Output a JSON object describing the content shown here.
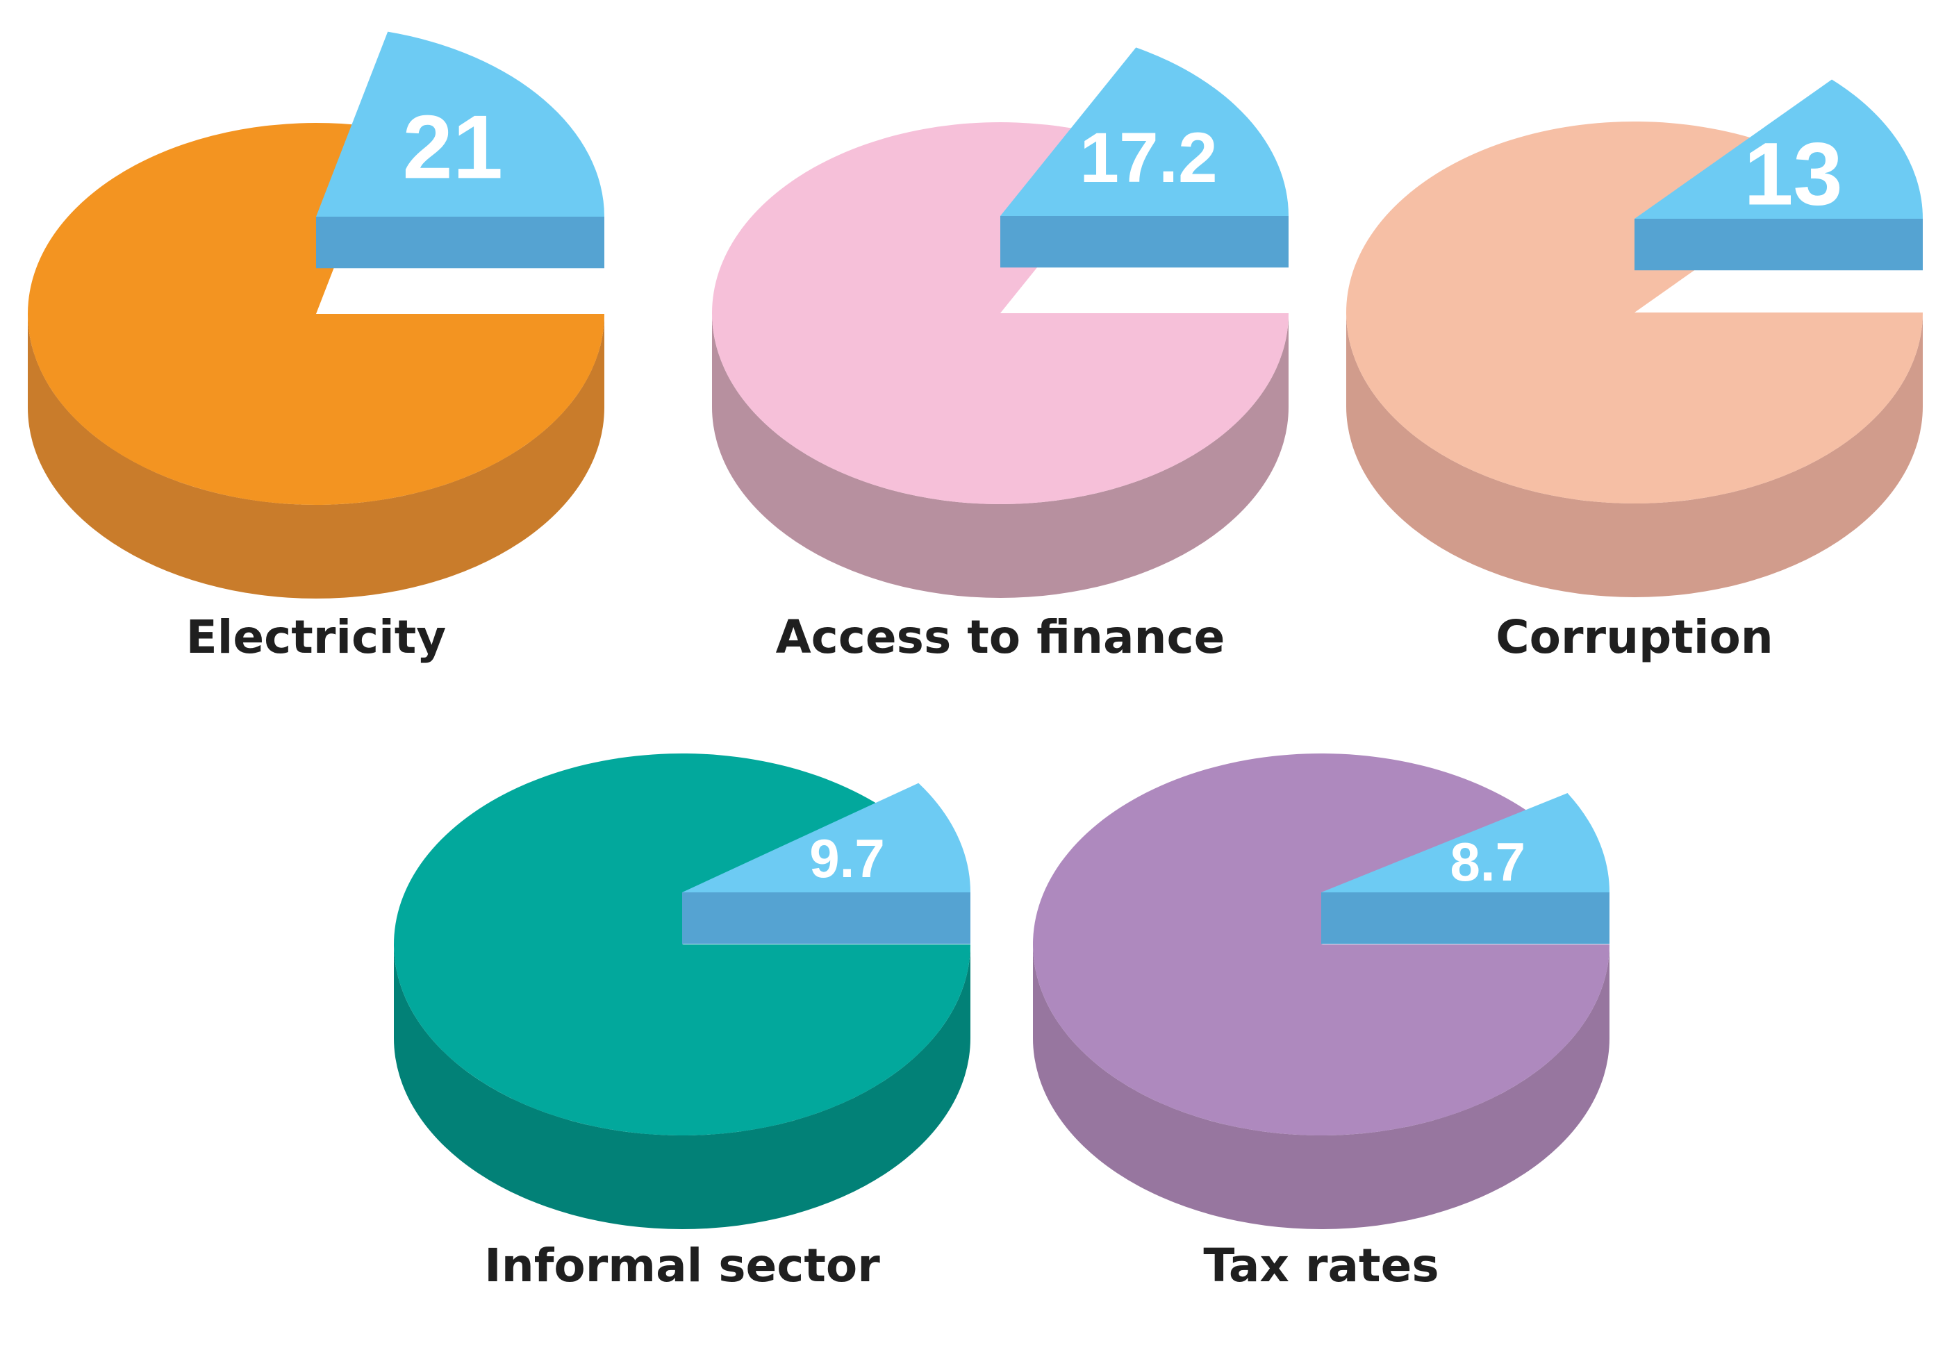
{
  "chart_data": {
    "type": "pie",
    "charts": [
      {
        "category": "Electricity",
        "value": 21,
        "value_label": "21",
        "colors": {
          "top": "#F39421",
          "side": "#C97C2B",
          "slice_top": "#6DCBF3",
          "slice_side": "#55A3D2",
          "slice_edge": "#3B9AD0"
        }
      },
      {
        "category": "Access to finance",
        "value": 17.2,
        "value_label": "17.2",
        "colors": {
          "top": "#F6C0D9",
          "side": "#B7909F",
          "slice_top": "#6DCBF3",
          "slice_side": "#55A3D2",
          "slice_edge": "#3B9AD0"
        }
      },
      {
        "category": "Corruption",
        "value": 13,
        "value_label": "13",
        "colors": {
          "top": "#F6BFA5",
          "side": "#D19C8C",
          "slice_top": "#6DCBF3",
          "slice_side": "#55A3D2",
          "slice_edge": "#3B9AD0"
        }
      },
      {
        "category": "Informal sector",
        "value": 9.7,
        "value_label": "9.7",
        "colors": {
          "top": "#02A89C",
          "side": "#028177",
          "slice_top": "#6DCBF3",
          "slice_side": "#55A3D2",
          "slice_edge": "#3B9AD0"
        }
      },
      {
        "category": "Tax rates",
        "value": 8.7,
        "value_label": "8.7",
        "colors": {
          "top": "#AE89BE",
          "side": "#97769F",
          "slice_top": "#6DCBF3",
          "slice_side": "#55A3D2",
          "slice_edge": "#3B9AD0"
        }
      }
    ]
  }
}
